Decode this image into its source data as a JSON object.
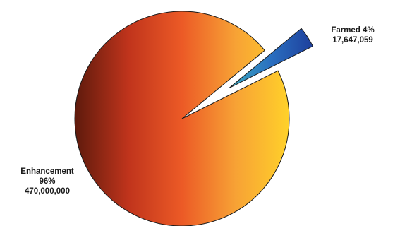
{
  "chart_data": {
    "type": "pie",
    "title": "",
    "slices": [
      {
        "name": "Enhancement",
        "percent_label": "96%",
        "value": 470000000,
        "value_label": "470,000,000"
      },
      {
        "name": "Farmed",
        "percent_label": "4%",
        "value": 17647059,
        "value_label": "17,647,059",
        "exploded": true
      }
    ],
    "legend": "none",
    "colors": {
      "enhancement_gradient": [
        "#5e1a0c",
        "#c0341c",
        "#ec5a26",
        "#f7a235",
        "#ffd12a"
      ],
      "farmed_gradient": [
        "#3aa9c0",
        "#2a6fc0",
        "#1e3f9c"
      ]
    }
  },
  "labels": {
    "enhancement": {
      "name": "Enhancement",
      "percent": "96%",
      "value": "470,000,000"
    },
    "farmed": {
      "name_percent": "Farmed 4%",
      "value": "17,647,059"
    }
  }
}
